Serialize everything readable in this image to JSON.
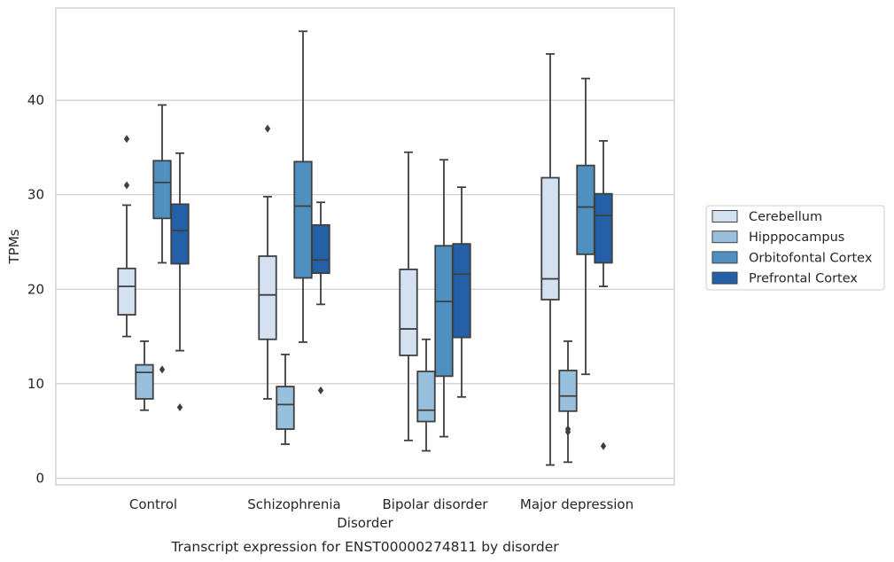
{
  "chart_data": {
    "type": "box",
    "caption": "Transcript expression for ENST00000274811 by disorder",
    "xlabel": "Disorder",
    "ylabel": "TPMs",
    "ylim": [
      -0.8,
      49.5
    ],
    "yticks": [
      0,
      10,
      20,
      30,
      40
    ],
    "grid": "horizontal",
    "legend_position": "right",
    "categories": [
      "Control",
      "Schizophrenia",
      "Bipolar disorder",
      "Major depression"
    ],
    "colors": [
      "#d3e1f0",
      "#98c0dc",
      "#4f90c0",
      "#2460a7"
    ],
    "series": [
      {
        "name": "Cerebellum",
        "boxes": [
          {
            "whisker_low": 15.0,
            "q1": 17.3,
            "median": 20.3,
            "q3": 22.2,
            "whisker_high": 28.9,
            "outliers": [
              31.0,
              35.9
            ]
          },
          {
            "whisker_low": 8.4,
            "q1": 14.7,
            "median": 19.4,
            "q3": 23.5,
            "whisker_high": 29.8,
            "outliers": [
              37.0
            ]
          },
          {
            "whisker_low": 4.0,
            "q1": 13.0,
            "median": 15.8,
            "q3": 22.1,
            "whisker_high": 34.5,
            "outliers": []
          },
          {
            "whisker_low": 1.4,
            "q1": 18.9,
            "median": 21.1,
            "q3": 31.8,
            "whisker_high": 44.9,
            "outliers": []
          }
        ]
      },
      {
        "name": "Hipppocampus",
        "boxes": [
          {
            "whisker_low": 7.2,
            "q1": 8.4,
            "median": 11.2,
            "q3": 12.0,
            "whisker_high": 14.5,
            "outliers": []
          },
          {
            "whisker_low": 3.6,
            "q1": 5.2,
            "median": 7.8,
            "q3": 9.7,
            "whisker_high": 13.1,
            "outliers": []
          },
          {
            "whisker_low": 2.9,
            "q1": 6.0,
            "median": 7.2,
            "q3": 11.3,
            "whisker_high": 14.7,
            "outliers": []
          },
          {
            "whisker_low": 1.7,
            "q1": 7.1,
            "median": 8.7,
            "q3": 11.4,
            "whisker_high": 14.5,
            "outliers": [
              4.9,
              5.2
            ]
          }
        ]
      },
      {
        "name": "Orbitofontal Cortex",
        "boxes": [
          {
            "whisker_low": 22.8,
            "q1": 27.5,
            "median": 31.3,
            "q3": 33.6,
            "whisker_high": 39.5,
            "outliers": [
              11.5
            ]
          },
          {
            "whisker_low": 14.4,
            "q1": 21.2,
            "median": 28.8,
            "q3": 33.5,
            "whisker_high": 47.3,
            "outliers": []
          },
          {
            "whisker_low": 4.4,
            "q1": 10.8,
            "median": 18.7,
            "q3": 24.6,
            "whisker_high": 33.7,
            "outliers": []
          },
          {
            "whisker_low": 11.0,
            "q1": 23.7,
            "median": 28.7,
            "q3": 33.1,
            "whisker_high": 42.3,
            "outliers": []
          }
        ]
      },
      {
        "name": "Prefrontal Cortex",
        "boxes": [
          {
            "whisker_low": 13.5,
            "q1": 22.7,
            "median": 26.2,
            "q3": 29.0,
            "whisker_high": 34.4,
            "outliers": [
              7.5
            ]
          },
          {
            "whisker_low": 18.4,
            "q1": 21.7,
            "median": 23.1,
            "q3": 26.8,
            "whisker_high": 29.2,
            "outliers": [
              9.3
            ]
          },
          {
            "whisker_low": 8.6,
            "q1": 14.9,
            "median": 21.6,
            "q3": 24.8,
            "whisker_high": 30.8,
            "outliers": []
          },
          {
            "whisker_low": 20.3,
            "q1": 22.8,
            "median": 27.8,
            "q3": 30.1,
            "whisker_high": 35.7,
            "outliers": [
              3.4
            ]
          }
        ]
      }
    ]
  }
}
